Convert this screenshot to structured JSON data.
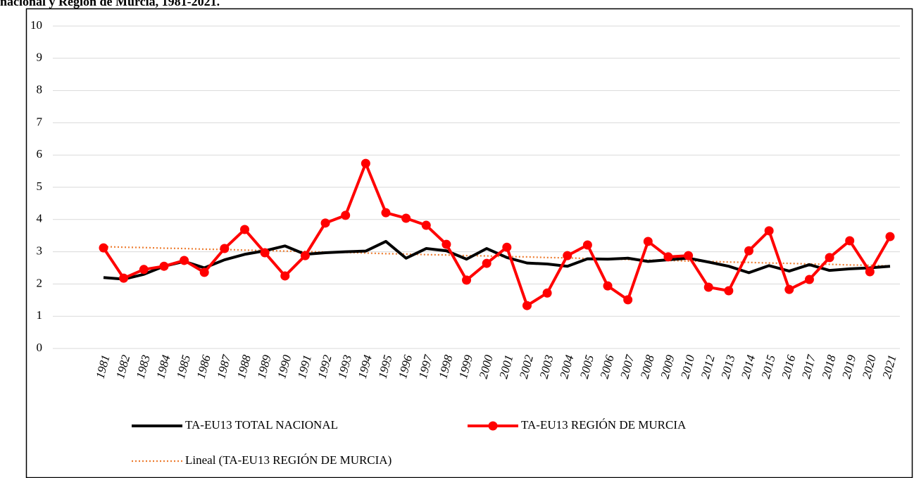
{
  "chart_data": {
    "type": "line",
    "title": "nacional y Región de Murcia, 1981-2021.",
    "categories": [
      "1981",
      "1982",
      "1983",
      "1984",
      "1985",
      "1986",
      "1987",
      "1988",
      "1989",
      "1990",
      "1991",
      "1992",
      "1993",
      "1994",
      "1995",
      "1996",
      "1997",
      "1998",
      "1999",
      "2000",
      "2001",
      "2002",
      "2003",
      "2004",
      "2005",
      "2006",
      "2007",
      "2008",
      "2009",
      "2010",
      "2012",
      "2013",
      "2014",
      "2015",
      "2016",
      "2017",
      "2018",
      "2019",
      "2020",
      "2021"
    ],
    "series": [
      {
        "name": "TA-EU13 TOTAL NACIONAL",
        "color": "#000000",
        "style": "solid",
        "values": [
          2.2,
          2.15,
          2.3,
          2.55,
          2.7,
          2.5,
          2.75,
          2.92,
          3.03,
          3.18,
          2.92,
          2.97,
          3.0,
          3.02,
          3.32,
          2.8,
          3.1,
          3.03,
          2.77,
          3.1,
          2.82,
          2.65,
          2.62,
          2.55,
          2.78,
          2.77,
          2.8,
          2.7,
          2.75,
          2.8,
          2.68,
          2.55,
          2.35,
          2.57,
          2.4,
          2.6,
          2.42,
          2.47,
          2.5,
          2.55
        ]
      },
      {
        "name": "TA-EU13 REGIÓN DE MURCIA",
        "color": "#ff0000",
        "style": "markers",
        "values": [
          3.12,
          2.18,
          2.45,
          2.55,
          2.73,
          2.36,
          3.1,
          3.69,
          2.97,
          2.25,
          2.88,
          3.89,
          4.13,
          5.74,
          4.21,
          4.04,
          3.82,
          3.23,
          2.12,
          2.64,
          3.14,
          1.33,
          1.72,
          2.88,
          3.21,
          1.94,
          1.51,
          3.32,
          2.84,
          2.88,
          1.9,
          1.79,
          3.03,
          3.65,
          1.83,
          2.14,
          2.82,
          3.34,
          2.38,
          3.47
        ]
      },
      {
        "name": "Lineal (TA-EU13 REGIÓN DE MURCIA)",
        "color": "#ed7d31",
        "style": "dotted",
        "values": [
          3.16,
          3.14,
          3.13,
          3.11,
          3.1,
          3.08,
          3.07,
          3.05,
          3.04,
          3.02,
          3.01,
          2.99,
          2.98,
          2.96,
          2.94,
          2.93,
          2.91,
          2.9,
          2.88,
          2.87,
          2.85,
          2.84,
          2.82,
          2.81,
          2.79,
          2.78,
          2.76,
          2.74,
          2.73,
          2.71,
          2.7,
          2.68,
          2.67,
          2.65,
          2.64,
          2.62,
          2.61,
          2.59,
          2.58,
          2.56
        ]
      }
    ],
    "ylim": [
      0,
      10
    ],
    "yticks": [
      0,
      1,
      2,
      3,
      4,
      5,
      6,
      7,
      8,
      9,
      10
    ],
    "grid": true
  }
}
